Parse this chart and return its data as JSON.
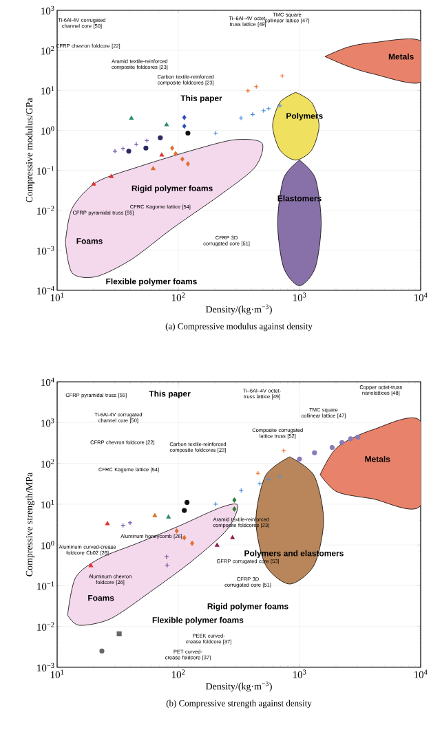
{
  "chart_data": [
    {
      "type": "scatter",
      "xlabel": "Density/(kg·m$^{−3}$)",
      "ylabel": "Compressive modulus/GPa",
      "subtitle": "(a) Compressive modulus against density",
      "log": "xy",
      "grid": true,
      "xlim": [
        10,
        10000
      ],
      "ylim": [
        0.0001,
        1000
      ],
      "xticks": [
        {
          "value": 10,
          "label": "10$^{1}$"
        },
        {
          "value": 100,
          "label": "10$^{2}$"
        },
        {
          "value": 1000,
          "label": "10$^{3}$"
        },
        {
          "value": 10000,
          "label": "10$^{4}$"
        }
      ],
      "yticks": [
        {
          "value": 0.0001,
          "label": "10$^{−4}$"
        },
        {
          "value": 0.001,
          "label": "10$^{−3}$"
        },
        {
          "value": 0.01,
          "label": "10$^{−2}$"
        },
        {
          "value": 0.1,
          "label": "10$^{−1}$"
        },
        {
          "value": 1,
          "label": "10$^{0}$"
        },
        {
          "value": 10,
          "label": "10$^{1}$"
        },
        {
          "value": 100,
          "label": "10$^{2}$"
        },
        {
          "value": 1000,
          "label": "10$^{3}$"
        }
      ],
      "series": [
        {
          "type": "area",
          "color": "#f4d8ec",
          "x": [
            11.7,
            13.3,
            21,
            46,
            132,
            290,
            490,
            430,
            225,
            89,
            41,
            21,
            13.3
          ],
          "values": [
            0.0016,
            0.0112,
            0.05,
            0.12,
            0.32,
            0.58,
            0.48,
            0.12,
            0.025,
            0.0035,
            0.00059,
            0.00022,
            0.00027
          ]
        },
        {
          "type": "area",
          "color": "#e8826a",
          "x": [
            1620,
            2500,
            4000,
            10000,
            10000,
            4000,
            2500
          ],
          "values": [
            70,
            120,
            155,
            170,
            16,
            26,
            40
          ]
        },
        {
          "type": "area",
          "color": "#f0e060",
          "x": [
            930,
            1260,
            1450,
            1260,
            930,
            690,
            600,
            690
          ],
          "values": [
            8.9,
            5,
            1.3,
            0.32,
            0.18,
            0.32,
            1.3,
            5
          ]
        },
        {
          "type": "area",
          "color": "#8870a8",
          "x": [
            1000,
            1350,
            1510,
            1350,
            1000,
            740,
            660,
            740
          ],
          "values": [
            0.18,
            0.063,
            0.0048,
            0.00037,
            0.00013,
            0.00037,
            0.0048,
            0.063
          ]
        },
        {
          "marker": "triangle",
          "color": "#e03030",
          "x": [
            20,
            28,
            73
          ],
          "values": [
            0.045,
            0.07,
            0.24
          ]
        },
        {
          "marker": "triangle",
          "color": "#e07020",
          "x": [
            62
          ],
          "values": [
            0.11
          ]
        },
        {
          "marker": "diamond",
          "color": "#e07030",
          "x": [
            89,
            95,
            108,
            120
          ],
          "values": [
            0.36,
            0.26,
            0.19,
            0.145
          ]
        },
        {
          "marker": "cross",
          "color": "#7050b0",
          "x": [
            30,
            35,
            45,
            55
          ],
          "values": [
            0.3,
            0.35,
            0.45,
            0.55
          ]
        },
        {
          "marker": "circle",
          "color": "#2a2a60",
          "x": [
            39,
            54,
            71
          ],
          "values": [
            0.3,
            0.36,
            0.65
          ]
        },
        {
          "marker": "triangle",
          "color": "#2e8b70",
          "x": [
            41,
            80
          ],
          "values": [
            2.0,
            1.37
          ]
        },
        {
          "marker": "diamond",
          "color": "#3050c0",
          "x": [
            112,
            112
          ],
          "values": [
            2.1,
            1.27
          ]
        },
        {
          "marker": "circle",
          "color": "#111111",
          "x": [
            120
          ],
          "values": [
            0.85
          ]
        },
        {
          "marker": "cross",
          "color": "#4a90e0",
          "x": [
            203,
            329,
            410,
            505,
            555,
            690
          ],
          "values": [
            0.85,
            2.03,
            2.5,
            3.1,
            3.5,
            4.1
          ]
        },
        {
          "marker": "cross",
          "color": "#f07030",
          "x": [
            375,
            440,
            721
          ],
          "values": [
            9.8,
            12.4,
            23
          ]
        }
      ],
      "annotations": [
        "Ti-6Al-4V corrugated channel core [50]",
        "CFRP chevron foldcore [22]",
        "Aramid textile-reinforced composite foldcores [23]",
        "Carbon textile-reinforced composite foldcores [23]",
        "This paper",
        "Ti–6Al–4V octet-truss lattice [49]",
        "TMC square collinear lattice [47]",
        "Metals",
        "Polymers",
        "Elastomers",
        "Foams",
        "Rigid polymer foams",
        "Flexible polymer foams",
        "CFRP pyramidal truss [55]",
        "CFRC Kagome lattice [54]",
        "CFRP 3D corrugated core [51]"
      ]
    },
    {
      "type": "scatter",
      "xlabel": "Density/(kg·m$^{−3}$)",
      "ylabel": "Compressive strength/MPa",
      "subtitle": "(b) Compressive strength against density",
      "log": "xy",
      "grid": true,
      "xlim": [
        10,
        10000
      ],
      "ylim": [
        0.001,
        10000
      ],
      "xticks": [
        {
          "value": 10,
          "label": "10$^{1}$"
        },
        {
          "value": 100,
          "label": "10$^{2}$"
        },
        {
          "value": 1000,
          "label": "10$^{3}$"
        },
        {
          "value": 10000,
          "label": "10$^{4}$"
        }
      ],
      "yticks": [
        {
          "value": 0.001,
          "label": "10$^{−3}$"
        },
        {
          "value": 0.01,
          "label": "10$^{−2}$"
        },
        {
          "value": 0.1,
          "label": "10$^{−1}$"
        },
        {
          "value": 1,
          "label": "10$^{0}$"
        },
        {
          "value": 10,
          "label": "10$^{1}$"
        },
        {
          "value": 100,
          "label": "10$^{2}$"
        },
        {
          "value": 1000,
          "label": "10$^{3}$"
        },
        {
          "value": 10000,
          "label": "10$^{4}$"
        }
      ],
      "series": [
        {
          "type": "area",
          "color": "#f4d8ec",
          "x": [
            12.2,
            14.2,
            22.5,
            46,
            101,
            224,
            310,
            253,
            132,
            60,
            27.6,
            15.2
          ],
          "values": [
            0.019,
            0.158,
            0.47,
            1.1,
            2.9,
            8.3,
            9.3,
            2.4,
            0.42,
            0.074,
            0.0155,
            0.0107
          ]
        },
        {
          "type": "area",
          "color": "#e8826a",
          "x": [
            1480,
            2040,
            3980,
            10000,
            10000,
            3980,
            2040
          ],
          "values": [
            53,
            245,
            660,
            1070,
            9.3,
            13.6,
            20
          ]
        },
        {
          "type": "area",
          "color": "#b8865a",
          "x": [
            830,
            1320,
            1580,
            1320,
            830,
            525,
            437,
            525
          ],
          "values": [
            145,
            50,
            4,
            0.32,
            0.11,
            0.32,
            4,
            50
          ]
        },
        {
          "marker": "triangle",
          "color": "#e03030",
          "x": [
            19,
            26
          ],
          "values": [
            0.31,
            3.3
          ]
        },
        {
          "marker": "cross",
          "color": "#7050b0",
          "x": [
            35,
            40
          ],
          "values": [
            3.0,
            3.5
          ]
        },
        {
          "marker": "triangle",
          "color": "#e07020",
          "x": [
            64
          ],
          "values": [
            5.2
          ]
        },
        {
          "marker": "triangle",
          "color": "#2e8b70",
          "x": [
            83
          ],
          "values": [
            4.8
          ]
        },
        {
          "marker": "circle",
          "color": "#111111",
          "x": [
            112,
            118
          ],
          "values": [
            7,
            11
          ]
        },
        {
          "marker": "diamond",
          "color": "#e07030",
          "x": [
            97,
            112,
            130
          ],
          "values": [
            2.2,
            1.5,
            1.1
          ]
        },
        {
          "marker": "diamond",
          "color": "#2e7d32",
          "x": [
            290,
            290
          ],
          "values": [
            7.6,
            12.6
          ]
        },
        {
          "marker": "cross",
          "color": "#4a90e0",
          "x": [
            203,
            330,
            470,
            555,
            690
          ],
          "values": [
            10,
            21.7,
            32,
            40,
            47
          ]
        },
        {
          "marker": "cross",
          "color": "#f07030",
          "x": [
            455,
            740
          ],
          "values": [
            57,
            205
          ]
        },
        {
          "marker": "circle",
          "color": "#8a7ab8",
          "x": [
            1000,
            1330,
            1860,
            2240,
            2640,
            3030
          ],
          "values": [
            128,
            182,
            245,
            325,
            400,
            440
          ]
        },
        {
          "marker": "triangle",
          "color": "#902050",
          "x": [
            209,
            280
          ],
          "values": [
            0.98,
            1.5
          ]
        },
        {
          "marker": "cross",
          "color": "#7040a0",
          "x": [
            80,
            81
          ],
          "values": [
            0.51,
            0.32
          ]
        },
        {
          "marker": "square",
          "color": "#666666",
          "x": [
            32.5
          ],
          "values": [
            0.0066
          ]
        },
        {
          "marker": "circle",
          "color": "#666666",
          "x": [
            23.4
          ],
          "values": [
            0.0025
          ]
        }
      ],
      "annotations": [
        "CFRP pyramidal truss [55]",
        "This paper",
        "Ti-6Al-4V corrugated channel core [50]",
        "CFRP chevron foldcore [22]",
        "Carbon textile-reinforced composite foldcores [23]",
        "CFRC Kagome lattice [54]",
        "Ti–6Al–4V octet-truss lattice [49]",
        "Copper octet-truss nanolattices [48]",
        "TMC square collinear lattice [47]",
        "Composite corrugated lattice truss [52]",
        "Metals",
        "Polymers and elastomers",
        "Aramid textile-reinforced composite foldcores [23]",
        "Aluminum curved-crease foldcore Cb02 [26]",
        "Aluminum honeycomb [26]",
        "GFRP corrugated core [53]",
        "Aluminum chevron foldcore [26]",
        "CFRP 3D corrugated core [51]",
        "Foams",
        "Rigid polymer foams",
        "Flexible polymer foams",
        "PEEK curved-crease foldcore [37]",
        "PET curved-crease foldcore [37]"
      ]
    }
  ]
}
